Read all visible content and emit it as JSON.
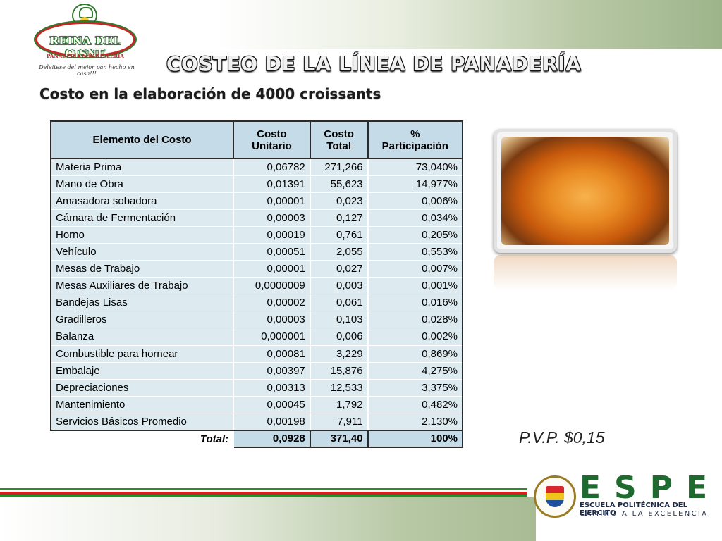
{
  "logo": {
    "name": "REINA DEL CISNE",
    "subtitle": "PANADERÍA & PASTELERÍA",
    "tagline": "Deleitese del mejor pan hecho en casa!!!"
  },
  "title": "COSTEO DE LA LÍNEA DE PANADERÍA",
  "subtitle": "Costo en la elaboración de 4000 croissants",
  "table": {
    "headers": {
      "element": "Elemento del Costo",
      "unit_line1": "Costo",
      "unit_line2": "Unitario",
      "total_line1": "Costo",
      "total_line2": "Total",
      "pct_line1": "%",
      "pct_line2": "Participación"
    },
    "rows": [
      {
        "item": "Materia Prima",
        "unit": "0,06782",
        "total": "271,266",
        "pct": "73,040%"
      },
      {
        "item": "Mano de Obra",
        "unit": "0,01391",
        "total": "55,623",
        "pct": "14,977%"
      },
      {
        "item": "Amasadora sobadora",
        "unit": "0,00001",
        "total": "0,023",
        "pct": "0,006%"
      },
      {
        "item": "Cámara de Fermentación",
        "unit": "0,00003",
        "total": "0,127",
        "pct": "0,034%"
      },
      {
        "item": "Horno",
        "unit": "0,00019",
        "total": "0,761",
        "pct": "0,205%"
      },
      {
        "item": "Vehículo",
        "unit": "0,00051",
        "total": "2,055",
        "pct": "0,553%"
      },
      {
        "item": "Mesas de Trabajo",
        "unit": "0,00001",
        "total": "0,027",
        "pct": "0,007%"
      },
      {
        "item": "Mesas Auxiliares de Trabajo",
        "unit": "0,0000009",
        "total": "0,003",
        "pct": "0,001%"
      },
      {
        "item": "Bandejas Lisas",
        "unit": "0,00002",
        "total": "0,061",
        "pct": "0,016%"
      },
      {
        "item": "Gradilleros",
        "unit": "0,00003",
        "total": "0,103",
        "pct": "0,028%"
      },
      {
        "item": "Balanza",
        "unit": "0,000001",
        "total": "0,006",
        "pct": "0,002%"
      },
      {
        "item": "Combustible para hornear",
        "unit": "0,00081",
        "total": "3,229",
        "pct": "0,869%"
      },
      {
        "item": "Embalaje",
        "unit": "0,00397",
        "total": "15,876",
        "pct": "4,275%"
      },
      {
        "item": "Depreciaciones",
        "unit": "0,00313",
        "total": "12,533",
        "pct": "3,375%"
      },
      {
        "item": "Mantenimiento",
        "unit": "0,00045",
        "total": "1,792",
        "pct": "0,482%"
      },
      {
        "item": "Servicios Básicos Promedio",
        "unit": "0,00198",
        "total": "7,911",
        "pct": "2,130%"
      }
    ],
    "footer": {
      "label": "Total:",
      "unit": "0,0928",
      "total": "371,40",
      "pct": "100%"
    }
  },
  "pvp": "P.V.P. $0,15",
  "footer_brand": {
    "letters": "ESPE",
    "school": "ESCUELA POLITÉCNICA DEL EJÉRCITO",
    "motto": "CAMINO A LA EXCELENCIA"
  }
}
